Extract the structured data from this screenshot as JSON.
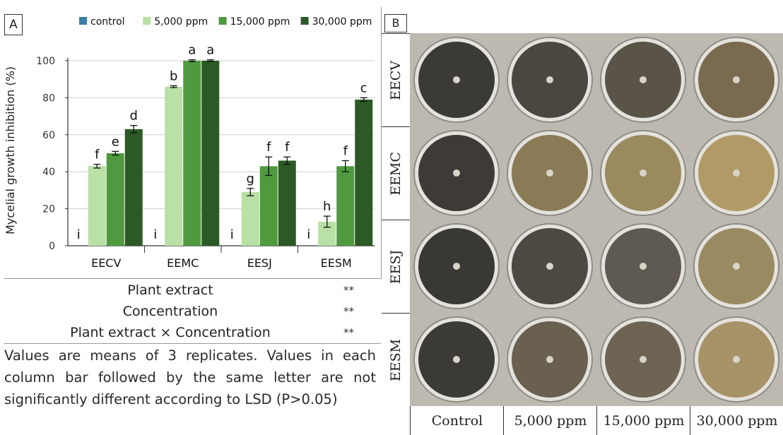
{
  "panel_a_letter": "A",
  "panel_b_letter": "B",
  "chart_data": {
    "type": "bar",
    "ylabel": "Mycelial growth inhibition (%)",
    "xlabel": "",
    "ylim": [
      0,
      100
    ],
    "yticks": [
      0,
      20,
      40,
      60,
      80,
      100
    ],
    "categories": [
      "EECV",
      "EEMC",
      "EESJ",
      "EESM"
    ],
    "legend_position": "top",
    "series": [
      {
        "name": "control",
        "color": "#3a7fa8",
        "values": [
          0,
          0,
          0,
          0
        ],
        "errors": [
          0,
          0,
          0,
          0
        ],
        "letters": [
          "i",
          "i",
          "i",
          "i"
        ]
      },
      {
        "name": "5,000 ppm",
        "color": "#b9e0a5",
        "values": [
          43,
          86,
          29,
          13
        ],
        "errors": [
          1,
          0.5,
          2,
          3
        ],
        "letters": [
          "f",
          "b",
          "g",
          "h"
        ]
      },
      {
        "name": "15,000 ppm",
        "color": "#4f9a3e",
        "values": [
          50,
          100,
          43,
          43
        ],
        "errors": [
          1,
          0.5,
          5,
          3
        ],
        "letters": [
          "e",
          "a",
          "f",
          "f"
        ]
      },
      {
        "name": "30,000 ppm",
        "color": "#2c5a26",
        "values": [
          63,
          100,
          46,
          79
        ],
        "errors": [
          2,
          0.5,
          2,
          1
        ],
        "letters": [
          "d",
          "a",
          "f",
          "c"
        ]
      }
    ]
  },
  "anova": [
    {
      "label": "Plant extract",
      "sig": "**"
    },
    {
      "label": "Concentration",
      "sig": "**"
    },
    {
      "label": "Plant extract × Concentration",
      "sig": "**"
    }
  ],
  "note": "Values are means of 3 replicates. Values in each column bar followed by the same letter are not significantly different according to LSD (P>0.05)",
  "panel_b": {
    "rows": [
      "EECV",
      "EEMC",
      "EESJ",
      "EESM"
    ],
    "columns": [
      "Control",
      "5,000 ppm",
      "15,000 ppm",
      "30,000 ppm"
    ],
    "dish_colors": [
      [
        "#3c3a36",
        "#4a4640",
        "#5a5448",
        "#7a6a50"
      ],
      [
        "#3e3b37",
        "#8a7a56",
        "#9a8a5e",
        "#b09a66"
      ],
      [
        "#3a3834",
        "#4c4842",
        "#5e5a52",
        "#9a8a62"
      ],
      [
        "#3c3a36",
        "#6a6050",
        "#6e6454",
        "#a89268"
      ]
    ]
  }
}
